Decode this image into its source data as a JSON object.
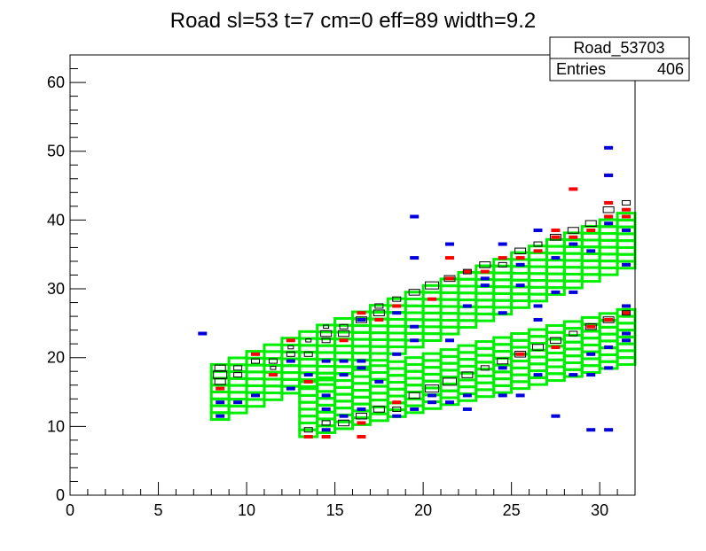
{
  "chart_data": {
    "type": "heatmap",
    "title": "Road sl=53 t=7 cm=0 eff=89 width=9.2",
    "xlabel": "",
    "ylabel": "",
    "xlim": [
      0,
      32
    ],
    "ylim": [
      0,
      64
    ],
    "x_ticks": [
      0,
      5,
      10,
      15,
      20,
      25,
      30
    ],
    "y_ticks": [
      0,
      10,
      20,
      30,
      40,
      50,
      60
    ],
    "grid": false,
    "stats_box": {
      "name": "Road_53703",
      "entries_label": "Entries",
      "entries_value": "406",
      "position": "top-right"
    },
    "colors": {
      "road": "#00ee00",
      "red_hits": "#ff0000",
      "blue_hits": "#0000dd",
      "counts_box": "#000000"
    },
    "road_bands": [
      {
        "name": "upper-road",
        "x_from": 8,
        "x_to": 32,
        "bottom_at_first": 11,
        "bottom_at_last": 33,
        "rows": 8,
        "cell_width": 1,
        "cell_height": 1
      },
      {
        "name": "lower-road",
        "x_from": 13,
        "x_to": 32,
        "bottom_at_first": 8.5,
        "bottom_at_last": 19,
        "rows": 8,
        "cell_width": 1,
        "cell_height": 1
      }
    ],
    "red_hits": [
      [
        8.5,
        15.5
      ],
      [
        10.5,
        20.5
      ],
      [
        11.5,
        17.5
      ],
      [
        12.5,
        22.5
      ],
      [
        13.5,
        16.5
      ],
      [
        13.5,
        8.5
      ],
      [
        14.5,
        8.5
      ],
      [
        15.5,
        22.5
      ],
      [
        16.5,
        26.5
      ],
      [
        16.5,
        10.5
      ],
      [
        16.5,
        8.5
      ],
      [
        17.5,
        25.5
      ],
      [
        18.5,
        27.5
      ],
      [
        18.5,
        13.5
      ],
      [
        20.5,
        28.5
      ],
      [
        21.5,
        34.5
      ],
      [
        21.5,
        31.5
      ],
      [
        22.5,
        32.5
      ],
      [
        23.5,
        32.5
      ],
      [
        24.5,
        34.5
      ],
      [
        25.5,
        34.5
      ],
      [
        26.5,
        35.5
      ],
      [
        27.5,
        38.5
      ],
      [
        27.5,
        37.5
      ],
      [
        28.5,
        44.5
      ],
      [
        28.5,
        37.5
      ],
      [
        29.5,
        38.5
      ],
      [
        30.5,
        46.5
      ],
      [
        30.5,
        42.5
      ],
      [
        30.5,
        40.5
      ],
      [
        31.5,
        41.5
      ],
      [
        31.5,
        40.5
      ],
      [
        29.5,
        24.5
      ],
      [
        30.5,
        25.5
      ],
      [
        31.5,
        26.5
      ],
      [
        25.5,
        20.5
      ],
      [
        27.5,
        21.5
      ]
    ],
    "blue_hits": [
      [
        7.5,
        23.5
      ],
      [
        8.5,
        11.5
      ],
      [
        8.5,
        13.5
      ],
      [
        9.5,
        13.5
      ],
      [
        10.5,
        14.5
      ],
      [
        12.5,
        15.5
      ],
      [
        12.5,
        19.5
      ],
      [
        13.5,
        17.5
      ],
      [
        14.5,
        19.5
      ],
      [
        14.5,
        14.5
      ],
      [
        14.5,
        12.5
      ],
      [
        14.5,
        9.5
      ],
      [
        15.5,
        19.5
      ],
      [
        15.5,
        17.5
      ],
      [
        15.5,
        11.5
      ],
      [
        16.5,
        25.5
      ],
      [
        16.5,
        19.5
      ],
      [
        16.5,
        18.5
      ],
      [
        16.5,
        12.5
      ],
      [
        17.5,
        16.5
      ],
      [
        18.5,
        20.5
      ],
      [
        18.5,
        11.5
      ],
      [
        19.5,
        40.5
      ],
      [
        19.5,
        34.5
      ],
      [
        19.5,
        24.5
      ],
      [
        19.5,
        12.5
      ],
      [
        20.5,
        13.5
      ],
      [
        21.5,
        36.5
      ],
      [
        21.5,
        22.5
      ],
      [
        22.5,
        27.5
      ],
      [
        22.5,
        12.5
      ],
      [
        23.5,
        31.5
      ],
      [
        24.5,
        36.5
      ],
      [
        24.5,
        26.5
      ],
      [
        24.5,
        18.5
      ],
      [
        24.5,
        14.5
      ],
      [
        25.5,
        33.5
      ],
      [
        25.5,
        14.5
      ],
      [
        26.5,
        38.5
      ],
      [
        26.5,
        27.5
      ],
      [
        26.5,
        25.5
      ],
      [
        26.5,
        17.5
      ],
      [
        27.5,
        34.5
      ],
      [
        27.5,
        29.5
      ],
      [
        27.5,
        11.5
      ],
      [
        28.5,
        36.5
      ],
      [
        28.5,
        29.5
      ],
      [
        28.5,
        17.5
      ],
      [
        29.5,
        35.5
      ],
      [
        29.5,
        17.5
      ],
      [
        29.5,
        9.5
      ],
      [
        30.5,
        50.5
      ],
      [
        30.5,
        46.5
      ],
      [
        30.5,
        39.5
      ],
      [
        30.5,
        9.5
      ],
      [
        30.5,
        18.5
      ],
      [
        31.5,
        38.5
      ],
      [
        31.5,
        33.5
      ],
      [
        31.5,
        23.5
      ],
      [
        31.5,
        22.5
      ],
      [
        31.5,
        27.5
      ],
      [
        22.5,
        14.5
      ],
      [
        21.5,
        13.5
      ],
      [
        20.5,
        14.5
      ],
      [
        19.5,
        22.5
      ],
      [
        18.5,
        26.5
      ],
      [
        23.5,
        30.5
      ],
      [
        25.5,
        30.5
      ],
      [
        29.5,
        20.5
      ],
      [
        30.5,
        21.5
      ]
    ],
    "count_boxes": [
      [
        8.5,
        18.5,
        3
      ],
      [
        8.5,
        17.5,
        4
      ],
      [
        8.5,
        16.5,
        3
      ],
      [
        9.5,
        17.5,
        2
      ],
      [
        9.5,
        18.5,
        2
      ],
      [
        10.5,
        19.5,
        2
      ],
      [
        11.5,
        19.5,
        2
      ],
      [
        11.5,
        18.5,
        1
      ],
      [
        12.5,
        20.5,
        2
      ],
      [
        12.5,
        21.5,
        1
      ],
      [
        13.5,
        20.5,
        2
      ],
      [
        13.5,
        22.5,
        1
      ],
      [
        14.5,
        22.5,
        2
      ],
      [
        14.5,
        23.5,
        3
      ],
      [
        14.5,
        24.5,
        1
      ],
      [
        15.5,
        24.5,
        2
      ],
      [
        15.5,
        23.5,
        3
      ],
      [
        16.5,
        25.5,
        3
      ],
      [
        17.5,
        27.5,
        2
      ],
      [
        17.5,
        26.5,
        3
      ],
      [
        18.5,
        28.5,
        2
      ],
      [
        19.5,
        29.5,
        3
      ],
      [
        20.5,
        30.5,
        4
      ],
      [
        21.5,
        31.5,
        3
      ],
      [
        22.5,
        32.5,
        2
      ],
      [
        23.5,
        33.5,
        3
      ],
      [
        24.5,
        33.5,
        2
      ],
      [
        25.5,
        35.5,
        3
      ],
      [
        26.5,
        36.5,
        2
      ],
      [
        27.5,
        37.5,
        3
      ],
      [
        28.5,
        38.5,
        3
      ],
      [
        29.5,
        39.5,
        3
      ],
      [
        30.5,
        41.5,
        3
      ],
      [
        31.5,
        42.5,
        2
      ],
      [
        13.5,
        9.5,
        2
      ],
      [
        14.5,
        10.5,
        2
      ],
      [
        15.5,
        10.5,
        3
      ],
      [
        16.5,
        11.5,
        3
      ],
      [
        17.5,
        12.5,
        3
      ],
      [
        18.5,
        12.5,
        2
      ],
      [
        19.5,
        14.5,
        3
      ],
      [
        20.5,
        15.5,
        4
      ],
      [
        21.5,
        16.5,
        4
      ],
      [
        22.5,
        17.5,
        3
      ],
      [
        23.5,
        18.5,
        2
      ],
      [
        24.5,
        19.5,
        3
      ],
      [
        25.5,
        20.5,
        3
      ],
      [
        26.5,
        21.5,
        3
      ],
      [
        27.5,
        22.5,
        3
      ],
      [
        28.5,
        23.5,
        2
      ],
      [
        29.5,
        24.5,
        3
      ],
      [
        30.5,
        25.5,
        3
      ],
      [
        31.5,
        26.5,
        2
      ]
    ]
  }
}
